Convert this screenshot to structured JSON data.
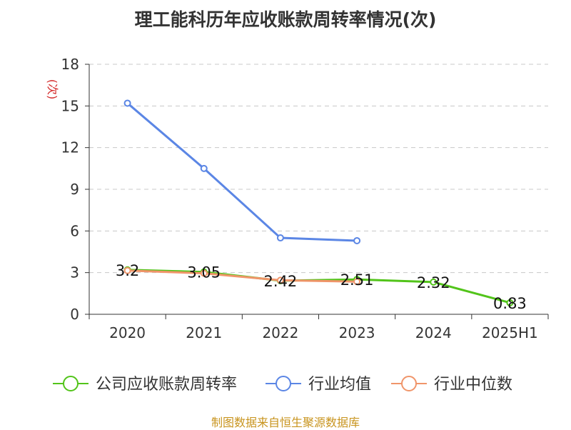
{
  "colors": {
    "company": "#52c41a",
    "avg": "#5b86e5",
    "median": "#f0956a",
    "source": "#c8941e",
    "ylabel": "#d42a2a"
  },
  "source": "制图数据来自恒生聚源数据库",
  "chart_data": {
    "type": "line",
    "title": "理工能科历年应收账款周转率情况(次)",
    "ylabel": "(次)",
    "xlabel": "",
    "categories": [
      "2020",
      "2021",
      "2022",
      "2023",
      "2024",
      "2025H1"
    ],
    "yticks": [
      "0",
      "3",
      "6",
      "9",
      "12",
      "15",
      "18"
    ],
    "ylim": [
      0,
      18
    ],
    "grid": true,
    "legend_position": "bottom",
    "series": [
      {
        "name": "公司应收账款周转率",
        "values": [
          3.2,
          3.05,
          2.42,
          2.51,
          2.32,
          0.83
        ],
        "labels": [
          "3.2",
          "3.05",
          "2.42",
          "2.51",
          "2.32",
          "0.83"
        ]
      },
      {
        "name": "行业均值",
        "values": [
          15.2,
          10.5,
          5.5,
          5.3,
          null,
          null
        ]
      },
      {
        "name": "行业中位数",
        "values": [
          3.15,
          2.95,
          2.45,
          2.35,
          null,
          null
        ]
      }
    ]
  }
}
